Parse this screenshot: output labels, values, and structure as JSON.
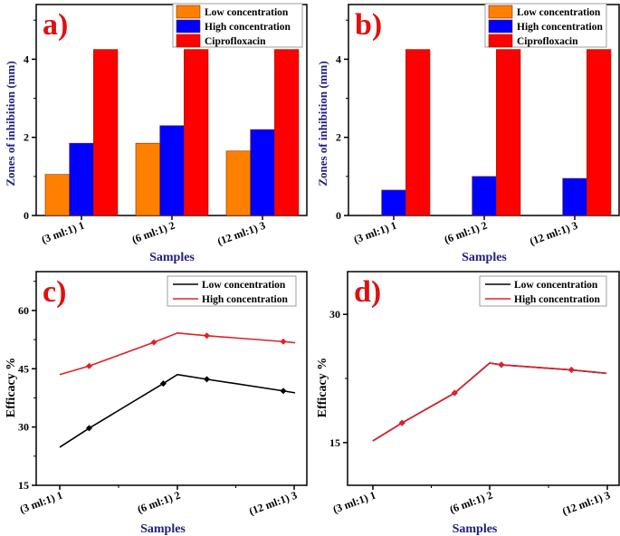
{
  "colors": {
    "low": "#ff8000",
    "high": "#0000ff",
    "cipro": "#ff0000",
    "line_low": "#000000",
    "line_high": "#e0202a",
    "panel_label": "#e01010",
    "axis_title": "#202080"
  },
  "chart_data": [
    {
      "panel": "a)",
      "type": "bar",
      "categories": [
        "(3   ml:1) 1",
        "(6   ml:1) 2",
        "(12 ml:1) 3"
      ],
      "series": [
        {
          "name": "Low concentration",
          "values": [
            1.05,
            1.85,
            1.65
          ]
        },
        {
          "name": "High concentration",
          "values": [
            1.85,
            2.3,
            2.2
          ]
        },
        {
          "name": "Ciprofloxacin",
          "values": [
            4.25,
            4.25,
            4.25
          ]
        }
      ],
      "xlabel": "Samples",
      "ylabel": "Zones of inhibition (mm)",
      "ylim": [
        0,
        5.4
      ],
      "yticks": [
        0,
        2,
        4
      ],
      "legend": "top-right",
      "grid": false
    },
    {
      "panel": "b)",
      "type": "bar",
      "categories": [
        "(3   ml:1) 1",
        "(6   ml:1) 2",
        "(12 ml:1) 3"
      ],
      "series": [
        {
          "name": "Low concentration",
          "values": [
            0,
            0,
            0
          ]
        },
        {
          "name": "High concentration",
          "values": [
            0.65,
            1.0,
            0.95
          ]
        },
        {
          "name": "Ciprofloxacin",
          "values": [
            4.25,
            4.25,
            4.25
          ]
        }
      ],
      "xlabel": "Samples",
      "ylabel": "Zones of inhibition (mm)",
      "ylim": [
        0,
        5.4
      ],
      "yticks": [
        0,
        2,
        4
      ],
      "legend": "top-right",
      "grid": false
    },
    {
      "panel": "c)",
      "type": "line",
      "categories": [
        "(3   ml:1) 1",
        "(6   ml:1) 2",
        "(12 ml:1) 3"
      ],
      "series": [
        {
          "name": "Low concentration",
          "x": [
            1,
            1.25,
            1.88,
            2,
            2.25,
            2.9,
            3
          ],
          "values": [
            24.8,
            29.7,
            41.2,
            43.5,
            42.3,
            39.3,
            38.8
          ]
        },
        {
          "name": "High concentration",
          "x": [
            1,
            1.25,
            1.8,
            2,
            2.25,
            2.9,
            3
          ],
          "values": [
            43.5,
            45.7,
            51.8,
            54.2,
            53.5,
            52.0,
            51.7
          ]
        }
      ],
      "xlabel": "Samples",
      "ylabel": "Efficacy %",
      "ylim": [
        15,
        70
      ],
      "yticks": [
        15,
        30,
        45,
        60
      ],
      "legend": "top-right",
      "grid": false
    },
    {
      "panel": "d)",
      "type": "line",
      "categories": [
        "(3   ml:1) 1",
        "(6   ml:1) 2",
        "(12 ml:1) 3"
      ],
      "series": [
        {
          "name": "Low concentration",
          "x": [
            1,
            1.25,
            1.7,
            2,
            2.1,
            2.7,
            3
          ],
          "values": [
            15.2,
            17.3,
            20.8,
            24.3,
            24.1,
            23.5,
            23.1
          ]
        },
        {
          "name": "High concentration",
          "x": [
            1,
            1.25,
            1.7,
            2,
            2.1,
            2.7,
            3
          ],
          "values": [
            15.2,
            17.3,
            20.8,
            24.3,
            24.1,
            23.5,
            23.1
          ]
        }
      ],
      "xlabel": "Samples",
      "ylabel": "Efficacy %",
      "ylim": [
        10,
        35
      ],
      "yticks": [
        15,
        30
      ],
      "legend": "top-right",
      "grid": false
    }
  ]
}
